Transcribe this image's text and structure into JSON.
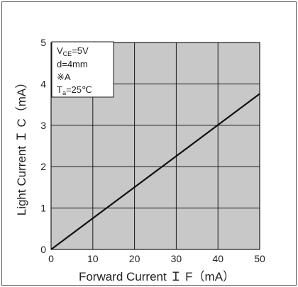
{
  "chart_data": {
    "type": "line",
    "xlabel": "Forward Current Ｉ F（mA）",
    "ylabel": "Light Current Ｉ C（mA）",
    "xlim": [
      0,
      50
    ],
    "ylim": [
      0,
      5
    ],
    "x_ticks": [
      "0",
      "10",
      "20",
      "30",
      "40",
      "50"
    ],
    "y_ticks": [
      "0",
      "1",
      "2",
      "3",
      "4",
      "5"
    ],
    "grid": true,
    "colors": {
      "plot_background": "#c8c8c8",
      "grid": "#1a1a1a",
      "line": "#111111"
    },
    "series": [
      {
        "x": [
          0,
          50
        ],
        "y": [
          0,
          3.76
        ]
      }
    ],
    "conditions": {
      "vce_main": "V",
      "vce_sub": "CE",
      "vce_rest": "=5V",
      "distance": "d=4mm",
      "note_a": "※A",
      "ta_main": "T",
      "ta_sub": "a",
      "ta_rest": "=25℃"
    }
  }
}
